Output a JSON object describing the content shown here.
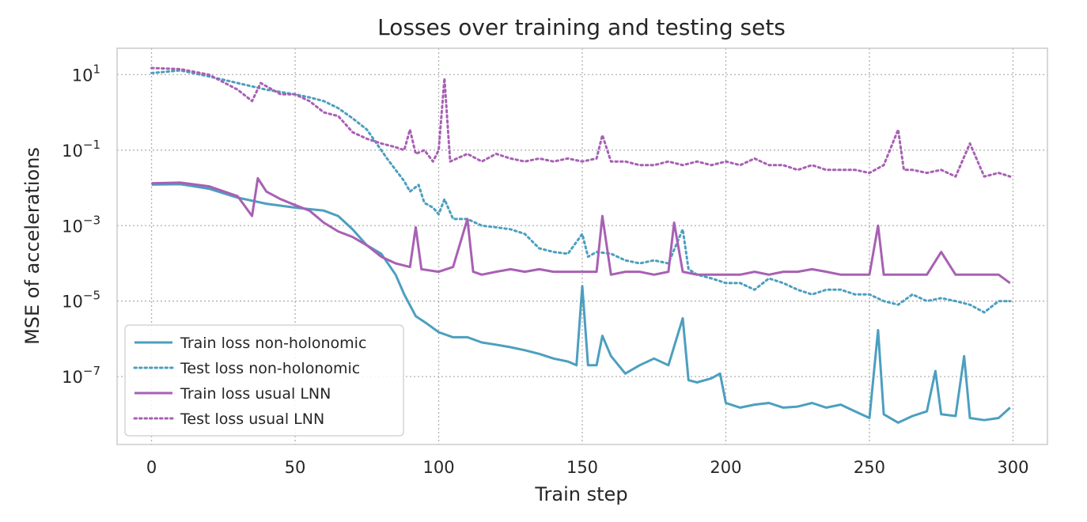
{
  "chart_data": {
    "type": "line",
    "title": "Losses over training and testing sets",
    "xlabel": "Train step",
    "ylabel": "MSE of accelerations",
    "xlim": [
      -12,
      312
    ],
    "ylim_log10": [
      -8.8,
      1.7
    ],
    "log_y": true,
    "grid": true,
    "legend_position": "lower-left",
    "x_ticks": [
      0,
      50,
      100,
      150,
      200,
      250,
      300
    ],
    "x_tick_labels": [
      "0",
      "50",
      "100",
      "150",
      "200",
      "250",
      "300"
    ],
    "y_ticks_log10": [
      1,
      -1,
      -3,
      -5,
      -7
    ],
    "y_tick_labels": [
      {
        "base": "10",
        "exp": "1"
      },
      {
        "base": "10",
        "exp": "−1"
      },
      {
        "base": "10",
        "exp": "−3"
      },
      {
        "base": "10",
        "exp": "−5"
      },
      {
        "base": "10",
        "exp": "−7"
      }
    ],
    "series": [
      {
        "name": "Train loss non-holonomic",
        "color": "#4c9fbf",
        "style": "solid",
        "points": [
          [
            0,
            0.0122
          ],
          [
            10,
            0.0125
          ],
          [
            20,
            0.0095
          ],
          [
            30,
            0.0055
          ],
          [
            40,
            0.0038
          ],
          [
            50,
            0.003
          ],
          [
            60,
            0.0025
          ],
          [
            65,
            0.0018
          ],
          [
            70,
            0.0008
          ],
          [
            75,
            0.0003
          ],
          [
            80,
            0.00018
          ],
          [
            85,
            5e-05
          ],
          [
            88,
            1.5e-05
          ],
          [
            92,
            4e-06
          ],
          [
            96,
            2.5e-06
          ],
          [
            100,
            1.5e-06
          ],
          [
            105,
            1.1e-06
          ],
          [
            110,
            1.1e-06
          ],
          [
            115,
            8e-07
          ],
          [
            120,
            7e-07
          ],
          [
            125,
            6e-07
          ],
          [
            130,
            5e-07
          ],
          [
            135,
            4e-07
          ],
          [
            140,
            3e-07
          ],
          [
            145,
            2.5e-07
          ],
          [
            148,
            2e-07
          ],
          [
            150,
            2.5e-05
          ],
          [
            152,
            2e-07
          ],
          [
            155,
            2e-07
          ],
          [
            157,
            1.2e-06
          ],
          [
            160,
            3.5e-07
          ],
          [
            165,
            1.2e-07
          ],
          [
            170,
            2e-07
          ],
          [
            175,
            3e-07
          ],
          [
            180,
            2e-07
          ],
          [
            185,
            3.5e-06
          ],
          [
            187,
            8e-08
          ],
          [
            190,
            7e-08
          ],
          [
            195,
            9e-08
          ],
          [
            198,
            1.2e-07
          ],
          [
            200,
            2e-08
          ],
          [
            205,
            1.5e-08
          ],
          [
            210,
            1.8e-08
          ],
          [
            215,
            2e-08
          ],
          [
            220,
            1.5e-08
          ],
          [
            225,
            1.6e-08
          ],
          [
            230,
            2e-08
          ],
          [
            235,
            1.5e-08
          ],
          [
            240,
            1.8e-08
          ],
          [
            245,
            1.2e-08
          ],
          [
            250,
            8e-09
          ],
          [
            253,
            1.7e-06
          ],
          [
            255,
            1e-08
          ],
          [
            260,
            6e-09
          ],
          [
            265,
            9e-09
          ],
          [
            270,
            1.2e-08
          ],
          [
            273,
            1.4e-07
          ],
          [
            275,
            1e-08
          ],
          [
            280,
            9e-09
          ],
          [
            283,
            3.5e-07
          ],
          [
            285,
            8e-09
          ],
          [
            290,
            7e-09
          ],
          [
            295,
            8e-09
          ],
          [
            299,
            1.5e-08
          ]
        ]
      },
      {
        "name": "Test loss non-holonomic",
        "color": "#4c9fbf",
        "style": "dotted",
        "points": [
          [
            0,
            11
          ],
          [
            10,
            13
          ],
          [
            20,
            9
          ],
          [
            30,
            6
          ],
          [
            40,
            4
          ],
          [
            50,
            3
          ],
          [
            55,
            2.5
          ],
          [
            60,
            2
          ],
          [
            65,
            1.3
          ],
          [
            70,
            0.7
          ],
          [
            75,
            0.35
          ],
          [
            80,
            0.1
          ],
          [
            82,
            0.06
          ],
          [
            85,
            0.03
          ],
          [
            88,
            0.015
          ],
          [
            90,
            0.008
          ],
          [
            93,
            0.012
          ],
          [
            95,
            0.004
          ],
          [
            98,
            0.003
          ],
          [
            100,
            0.002
          ],
          [
            102,
            0.005
          ],
          [
            105,
            0.0015
          ],
          [
            110,
            0.0015
          ],
          [
            115,
            0.001
          ],
          [
            120,
            0.0009
          ],
          [
            125,
            0.0008
          ],
          [
            130,
            0.0006
          ],
          [
            135,
            0.00025
          ],
          [
            140,
            0.0002
          ],
          [
            145,
            0.00018
          ],
          [
            150,
            0.0006
          ],
          [
            152,
            0.00015
          ],
          [
            155,
            0.0002
          ],
          [
            160,
            0.00018
          ],
          [
            165,
            0.00012
          ],
          [
            170,
            0.0001
          ],
          [
            175,
            0.00012
          ],
          [
            180,
            0.0001
          ],
          [
            185,
            0.0008
          ],
          [
            187,
            7e-05
          ],
          [
            190,
            5e-05
          ],
          [
            195,
            4e-05
          ],
          [
            200,
            3e-05
          ],
          [
            205,
            3e-05
          ],
          [
            210,
            2e-05
          ],
          [
            215,
            4e-05
          ],
          [
            220,
            3e-05
          ],
          [
            225,
            2e-05
          ],
          [
            230,
            1.5e-05
          ],
          [
            235,
            2e-05
          ],
          [
            240,
            2e-05
          ],
          [
            245,
            1.5e-05
          ],
          [
            250,
            1.5e-05
          ],
          [
            255,
            1e-05
          ],
          [
            260,
            8e-06
          ],
          [
            265,
            1.5e-05
          ],
          [
            270,
            1e-05
          ],
          [
            275,
            1.2e-05
          ],
          [
            280,
            1e-05
          ],
          [
            285,
            8e-06
          ],
          [
            290,
            5e-06
          ],
          [
            295,
            1e-05
          ],
          [
            299,
            1e-05
          ]
        ]
      },
      {
        "name": "Train loss usual LNN",
        "color": "#a860b4",
        "style": "solid",
        "points": [
          [
            0,
            0.0132
          ],
          [
            10,
            0.0138
          ],
          [
            20,
            0.011
          ],
          [
            30,
            0.006
          ],
          [
            35,
            0.0018
          ],
          [
            37,
            0.018
          ],
          [
            40,
            0.008
          ],
          [
            45,
            0.005
          ],
          [
            50,
            0.0035
          ],
          [
            55,
            0.0025
          ],
          [
            60,
            0.0012
          ],
          [
            65,
            0.0007
          ],
          [
            70,
            0.0005
          ],
          [
            75,
            0.0003
          ],
          [
            80,
            0.00015
          ],
          [
            85,
            0.0001
          ],
          [
            90,
            8e-05
          ],
          [
            92,
            0.0009
          ],
          [
            94,
            7e-05
          ],
          [
            100,
            6e-05
          ],
          [
            105,
            8e-05
          ],
          [
            110,
            0.0015
          ],
          [
            112,
            6e-05
          ],
          [
            115,
            5e-05
          ],
          [
            120,
            6e-05
          ],
          [
            125,
            7e-05
          ],
          [
            130,
            6e-05
          ],
          [
            135,
            7e-05
          ],
          [
            140,
            6e-05
          ],
          [
            145,
            6e-05
          ],
          [
            150,
            6e-05
          ],
          [
            155,
            6e-05
          ],
          [
            157,
            0.0018
          ],
          [
            160,
            5e-05
          ],
          [
            165,
            6e-05
          ],
          [
            170,
            6e-05
          ],
          [
            175,
            5e-05
          ],
          [
            180,
            6e-05
          ],
          [
            182,
            0.0012
          ],
          [
            185,
            6e-05
          ],
          [
            190,
            5e-05
          ],
          [
            195,
            5e-05
          ],
          [
            200,
            5e-05
          ],
          [
            205,
            5e-05
          ],
          [
            210,
            6e-05
          ],
          [
            215,
            5e-05
          ],
          [
            220,
            6e-05
          ],
          [
            225,
            6e-05
          ],
          [
            230,
            7e-05
          ],
          [
            235,
            6e-05
          ],
          [
            240,
            5e-05
          ],
          [
            245,
            5e-05
          ],
          [
            250,
            5e-05
          ],
          [
            253,
            0.001
          ],
          [
            255,
            5e-05
          ],
          [
            260,
            5e-05
          ],
          [
            265,
            5e-05
          ],
          [
            270,
            5e-05
          ],
          [
            275,
            0.0002
          ],
          [
            280,
            5e-05
          ],
          [
            285,
            5e-05
          ],
          [
            290,
            5e-05
          ],
          [
            295,
            5e-05
          ],
          [
            299,
            3e-05
          ]
        ]
      },
      {
        "name": "Test loss usual LNN",
        "color": "#a860b4",
        "style": "dotted",
        "points": [
          [
            0,
            15
          ],
          [
            10,
            14
          ],
          [
            20,
            10
          ],
          [
            30,
            4
          ],
          [
            35,
            2
          ],
          [
            38,
            6
          ],
          [
            45,
            3
          ],
          [
            50,
            3
          ],
          [
            55,
            2
          ],
          [
            60,
            1
          ],
          [
            65,
            0.8
          ],
          [
            70,
            0.3
          ],
          [
            75,
            0.2
          ],
          [
            80,
            0.15
          ],
          [
            85,
            0.12
          ],
          [
            88,
            0.1
          ],
          [
            90,
            0.35
          ],
          [
            92,
            0.08
          ],
          [
            95,
            0.1
          ],
          [
            98,
            0.05
          ],
          [
            100,
            0.1
          ],
          [
            102,
            8
          ],
          [
            104,
            0.05
          ],
          [
            110,
            0.08
          ],
          [
            115,
            0.05
          ],
          [
            120,
            0.08
          ],
          [
            125,
            0.06
          ],
          [
            130,
            0.05
          ],
          [
            135,
            0.06
          ],
          [
            140,
            0.05
          ],
          [
            145,
            0.06
          ],
          [
            150,
            0.05
          ],
          [
            155,
            0.06
          ],
          [
            157,
            0.25
          ],
          [
            160,
            0.05
          ],
          [
            165,
            0.05
          ],
          [
            170,
            0.04
          ],
          [
            175,
            0.04
          ],
          [
            180,
            0.05
          ],
          [
            185,
            0.04
          ],
          [
            190,
            0.05
          ],
          [
            195,
            0.04
          ],
          [
            200,
            0.05
          ],
          [
            205,
            0.04
          ],
          [
            210,
            0.06
          ],
          [
            215,
            0.04
          ],
          [
            220,
            0.04
          ],
          [
            225,
            0.03
          ],
          [
            230,
            0.04
          ],
          [
            235,
            0.03
          ],
          [
            240,
            0.03
          ],
          [
            245,
            0.03
          ],
          [
            250,
            0.025
          ],
          [
            255,
            0.04
          ],
          [
            260,
            0.35
          ],
          [
            262,
            0.03
          ],
          [
            265,
            0.03
          ],
          [
            270,
            0.025
          ],
          [
            275,
            0.03
          ],
          [
            280,
            0.02
          ],
          [
            285,
            0.15
          ],
          [
            290,
            0.02
          ],
          [
            295,
            0.025
          ],
          [
            299,
            0.02
          ]
        ]
      }
    ]
  }
}
